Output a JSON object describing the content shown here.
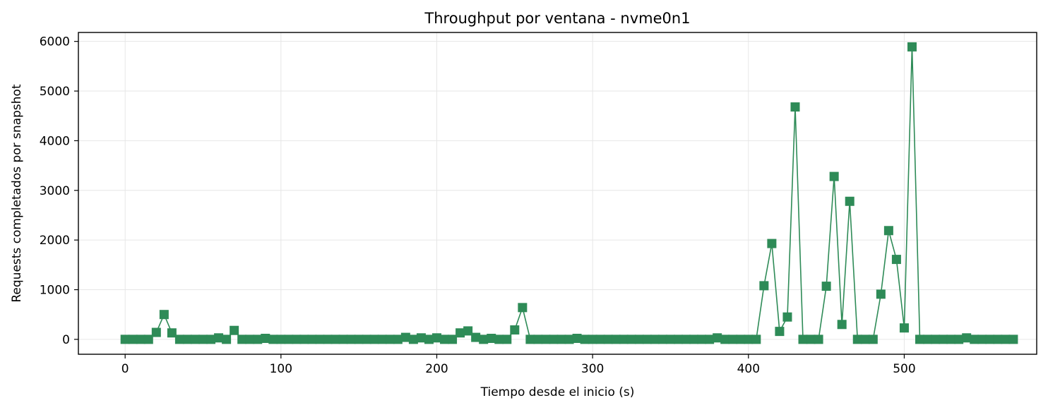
{
  "chart_data": {
    "type": "line",
    "title": "Throughput por ventana - nvme0n1",
    "xlabel": "Tiempo desde el inicio (s)",
    "ylabel": "Requests completados por snapshot",
    "xlim": [
      -30,
      585
    ],
    "ylim": [
      -300,
      6180
    ],
    "x_ticks": [
      0,
      100,
      200,
      300,
      400,
      500
    ],
    "y_ticks": [
      0,
      1000,
      2000,
      3000,
      4000,
      5000,
      6000
    ],
    "x_tick_labels": [
      "0",
      "100",
      "200",
      "300",
      "400",
      "500"
    ],
    "y_tick_labels": [
      "0",
      "1000",
      "2000",
      "3000",
      "4000",
      "5000",
      "6000"
    ],
    "grid": true,
    "marker": "square",
    "colors": {
      "series": "#2e8b57"
    },
    "series": [
      {
        "x": [
          0,
          5,
          10,
          15,
          20,
          25,
          30,
          35,
          40,
          45,
          50,
          55,
          60,
          65,
          70,
          75,
          80,
          85,
          90,
          95,
          100,
          105,
          110,
          115,
          120,
          125,
          130,
          135,
          140,
          145,
          150,
          155,
          160,
          165,
          170,
          175,
          180,
          185,
          190,
          195,
          200,
          205,
          210,
          215,
          220,
          225,
          230,
          235,
          240,
          245,
          250,
          255,
          260,
          265,
          270,
          275,
          280,
          285,
          290,
          295,
          300,
          305,
          310,
          315,
          320,
          325,
          330,
          335,
          340,
          345,
          350,
          355,
          360,
          365,
          370,
          375,
          380,
          385,
          390,
          395,
          400,
          405,
          410,
          415,
          420,
          425,
          430,
          435,
          440,
          445,
          450,
          455,
          460,
          465,
          470,
          475,
          480,
          485,
          490,
          495,
          500,
          505,
          510,
          515,
          520,
          525,
          530,
          535,
          540,
          545,
          550,
          555,
          560,
          565,
          570
        ],
        "y": [
          0,
          0,
          0,
          0,
          140,
          500,
          130,
          0,
          0,
          0,
          0,
          0,
          30,
          0,
          180,
          0,
          0,
          0,
          20,
          0,
          0,
          0,
          0,
          0,
          0,
          0,
          0,
          0,
          0,
          0,
          0,
          0,
          0,
          0,
          0,
          0,
          40,
          0,
          30,
          0,
          30,
          0,
          0,
          130,
          170,
          40,
          0,
          20,
          0,
          0,
          190,
          640,
          0,
          0,
          0,
          0,
          0,
          0,
          20,
          0,
          0,
          0,
          0,
          0,
          0,
          0,
          0,
          0,
          0,
          0,
          0,
          0,
          0,
          0,
          0,
          0,
          30,
          0,
          0,
          0,
          0,
          0,
          1080,
          1930,
          160,
          450,
          4680,
          0,
          0,
          0,
          1070,
          3280,
          300,
          2780,
          0,
          0,
          0,
          910,
          2190,
          1610,
          230,
          5890,
          0,
          0,
          0,
          0,
          0,
          0,
          30,
          0,
          0,
          0,
          0,
          0,
          0
        ]
      }
    ]
  }
}
